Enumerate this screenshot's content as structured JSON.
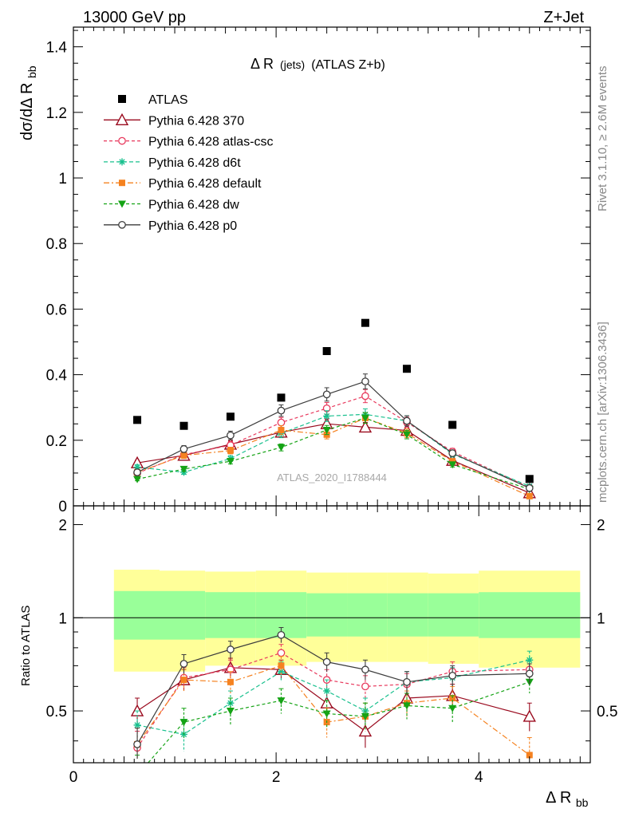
{
  "header": {
    "left_label": "13000 GeV pp",
    "right_label": "Z+Jet"
  },
  "side_labels": {
    "rivet": "Rivet 3.1.10, ≥ 2.6M events",
    "mcplots": "mcplots.cern.ch [arXiv:1306.3436]"
  },
  "watermark": "ATLAS_2020_I1788444",
  "chart_data": {
    "type": "scatter",
    "title": "Δ R (jets) (ATLAS Z+b)",
    "title_main": "Δ R",
    "title_small": "(jets)",
    "title_rest": "(ATLAS Z+b)",
    "xlabel": "Δ R",
    "xlabel_sub": "bb",
    "ylabel": "dσ/dΔ R",
    "ylabel_sub": "bb",
    "ratio_ylabel": "Ratio to ATLAS",
    "xlim": [
      0,
      5.1
    ],
    "ylim": [
      0,
      1.46
    ],
    "ratio_ylim": [
      0.34,
      2.3
    ],
    "x_ticks": [
      0,
      2,
      4
    ],
    "x_tick_labels": [
      "0",
      "2",
      "4"
    ],
    "y_ticks": [
      0,
      0.2,
      0.4,
      0.6,
      0.8,
      1,
      1.2,
      1.4
    ],
    "y_tick_labels": [
      "0",
      "0.2",
      "0.4",
      "0.6",
      "0.8",
      "1",
      "1.2",
      "1.4"
    ],
    "ratio_ticks": [
      0.5,
      1,
      2
    ],
    "ratio_tick_labels": [
      "0.5",
      "1",
      "2"
    ],
    "bins": [
      {
        "lo": 0.4,
        "hi": 0.85,
        "x": 0.63
      },
      {
        "lo": 0.85,
        "hi": 1.3,
        "x": 1.09
      },
      {
        "lo": 1.3,
        "hi": 1.8,
        "x": 1.55
      },
      {
        "lo": 1.8,
        "hi": 2.3,
        "x": 2.05
      },
      {
        "lo": 2.3,
        "hi": 2.7,
        "x": 2.5
      },
      {
        "lo": 2.7,
        "hi": 3.1,
        "x": 2.88
      },
      {
        "lo": 3.1,
        "hi": 3.5,
        "x": 3.29
      },
      {
        "lo": 3.5,
        "hi": 4.0,
        "x": 3.74
      },
      {
        "lo": 4.0,
        "hi": 5.0,
        "x": 4.5
      }
    ],
    "data": {
      "name": "ATLAS",
      "values": [
        0.262,
        0.244,
        0.272,
        0.33,
        0.472,
        0.558,
        0.418,
        0.247,
        0.082
      ],
      "band_stat": [
        [
          0.85,
          1.22
        ],
        [
          0.85,
          1.22
        ],
        [
          0.86,
          1.21
        ],
        [
          0.86,
          1.21
        ],
        [
          0.87,
          1.2
        ],
        [
          0.87,
          1.2
        ],
        [
          0.87,
          1.2
        ],
        [
          0.87,
          1.2
        ],
        [
          0.86,
          1.21
        ]
      ],
      "band_total": [
        [
          0.67,
          1.43
        ],
        [
          0.67,
          1.42
        ],
        [
          0.7,
          1.41
        ],
        [
          0.7,
          1.42
        ],
        [
          0.72,
          1.4
        ],
        [
          0.72,
          1.4
        ],
        [
          0.72,
          1.4
        ],
        [
          0.71,
          1.39
        ],
        [
          0.69,
          1.42
        ]
      ]
    },
    "series": [
      {
        "name": "Pythia 6.428 370",
        "color": "#9a0a1e",
        "marker": "triangle-open",
        "dash": "",
        "ratio": [
          0.5,
          0.63,
          0.69,
          0.68,
          0.53,
          0.43,
          0.55,
          0.56,
          0.48
        ],
        "ratio_err": 0.05
      },
      {
        "name": "Pythia 6.428 atlas-csc",
        "color": "#e8385c",
        "marker": "circle-open",
        "dash": "4,3",
        "ratio": [
          0.38,
          0.64,
          0.68,
          0.77,
          0.63,
          0.6,
          0.61,
          0.67,
          0.68
        ],
        "ratio_err": 0.05
      },
      {
        "name": "Pythia 6.428 d6t",
        "color": "#18c08e",
        "marker": "star",
        "dash": "5,3",
        "ratio": [
          0.45,
          0.42,
          0.53,
          0.67,
          0.58,
          0.5,
          0.62,
          0.64,
          0.73
        ],
        "ratio_err": 0.05
      },
      {
        "name": "Pythia 6.428 default",
        "color": "#f58220",
        "marker": "square-filled",
        "dash": "7,3,2,3",
        "ratio": [
          0.39,
          0.63,
          0.62,
          0.7,
          0.46,
          0.48,
          0.53,
          0.55,
          0.36
        ],
        "ratio_err": 0.05
      },
      {
        "name": "Pythia 6.428 dw",
        "color": "#15a315",
        "marker": "triangle-down-filled",
        "dash": "4,3",
        "ratio": [
          0.31,
          0.46,
          0.5,
          0.54,
          0.49,
          0.48,
          0.52,
          0.51,
          0.62
        ],
        "ratio_err": 0.05
      },
      {
        "name": "Pythia 6.428 p0",
        "color": "#3d3d3d",
        "marker": "circle-open",
        "dash": "",
        "ratio": [
          0.39,
          0.71,
          0.79,
          0.88,
          0.72,
          0.68,
          0.62,
          0.65,
          0.66
        ],
        "ratio_err": 0.05
      }
    ]
  }
}
